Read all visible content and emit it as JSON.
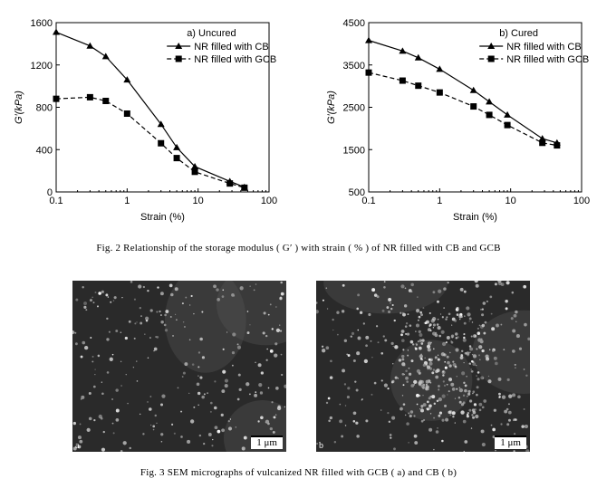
{
  "figure2": {
    "caption": "Fig. 2   Relationship of the storage modulus ( G′ ) with strain ( % ) of NR filled with CB and GCB"
  },
  "figure3": {
    "caption": "Fig. 3   SEM micrographs of vulcanized NR filled with GCB ( a)  and CB ( b)",
    "panel_a": {
      "letter": "a",
      "scale_bar": "1 μm"
    },
    "panel_b": {
      "letter": "b",
      "scale_bar": "1 μm"
    }
  },
  "chart_data": [
    {
      "type": "line",
      "title": "a) Uncured",
      "xlabel": "Strain (%)",
      "ylabel": "G′(kPa)",
      "xscale": "log",
      "xlim": [
        0.1,
        100
      ],
      "ylim": [
        0,
        1600
      ],
      "xticks": [
        "0.1",
        "1",
        "10",
        "100"
      ],
      "yticks": [
        "0",
        "400",
        "800",
        "1200",
        "1600"
      ],
      "legend_position": "top-right",
      "series": [
        {
          "name": "NR filled with CB",
          "marker": "triangle",
          "line": "solid",
          "x": [
            0.1,
            0.3,
            0.5,
            1.0,
            3.0,
            5.0,
            9.0,
            28,
            45
          ],
          "y": [
            1510,
            1380,
            1280,
            1060,
            640,
            420,
            240,
            100,
            45
          ]
        },
        {
          "name": "NR filled with GCB",
          "marker": "square",
          "line": "dashed",
          "x": [
            0.1,
            0.3,
            0.5,
            1.0,
            3.0,
            5.0,
            9.0,
            28,
            45
          ],
          "y": [
            880,
            895,
            860,
            740,
            460,
            320,
            190,
            80,
            40
          ]
        }
      ]
    },
    {
      "type": "line",
      "title": "b) Cured",
      "xlabel": "Strain (%)",
      "ylabel": "G′(kPa)",
      "xscale": "log",
      "xlim": [
        0.1,
        100
      ],
      "ylim": [
        500,
        4500
      ],
      "xticks": [
        "0.1",
        "1",
        "10",
        "100"
      ],
      "yticks": [
        "500",
        "1500",
        "2500",
        "3500",
        "4500"
      ],
      "legend_position": "top-right",
      "series": [
        {
          "name": "NR filled with CB",
          "marker": "triangle",
          "line": "solid",
          "x": [
            0.1,
            0.3,
            0.5,
            1.0,
            3.0,
            5.0,
            9.0,
            28,
            45
          ],
          "y": [
            4080,
            3830,
            3670,
            3400,
            2900,
            2630,
            2320,
            1760,
            1660
          ]
        },
        {
          "name": "NR filled with GCB",
          "marker": "square",
          "line": "dashed",
          "x": [
            0.1,
            0.3,
            0.5,
            1.0,
            3.0,
            5.0,
            9.0,
            28,
            45
          ],
          "y": [
            3320,
            3130,
            3010,
            2850,
            2520,
            2320,
            2080,
            1660,
            1600
          ]
        }
      ]
    }
  ]
}
